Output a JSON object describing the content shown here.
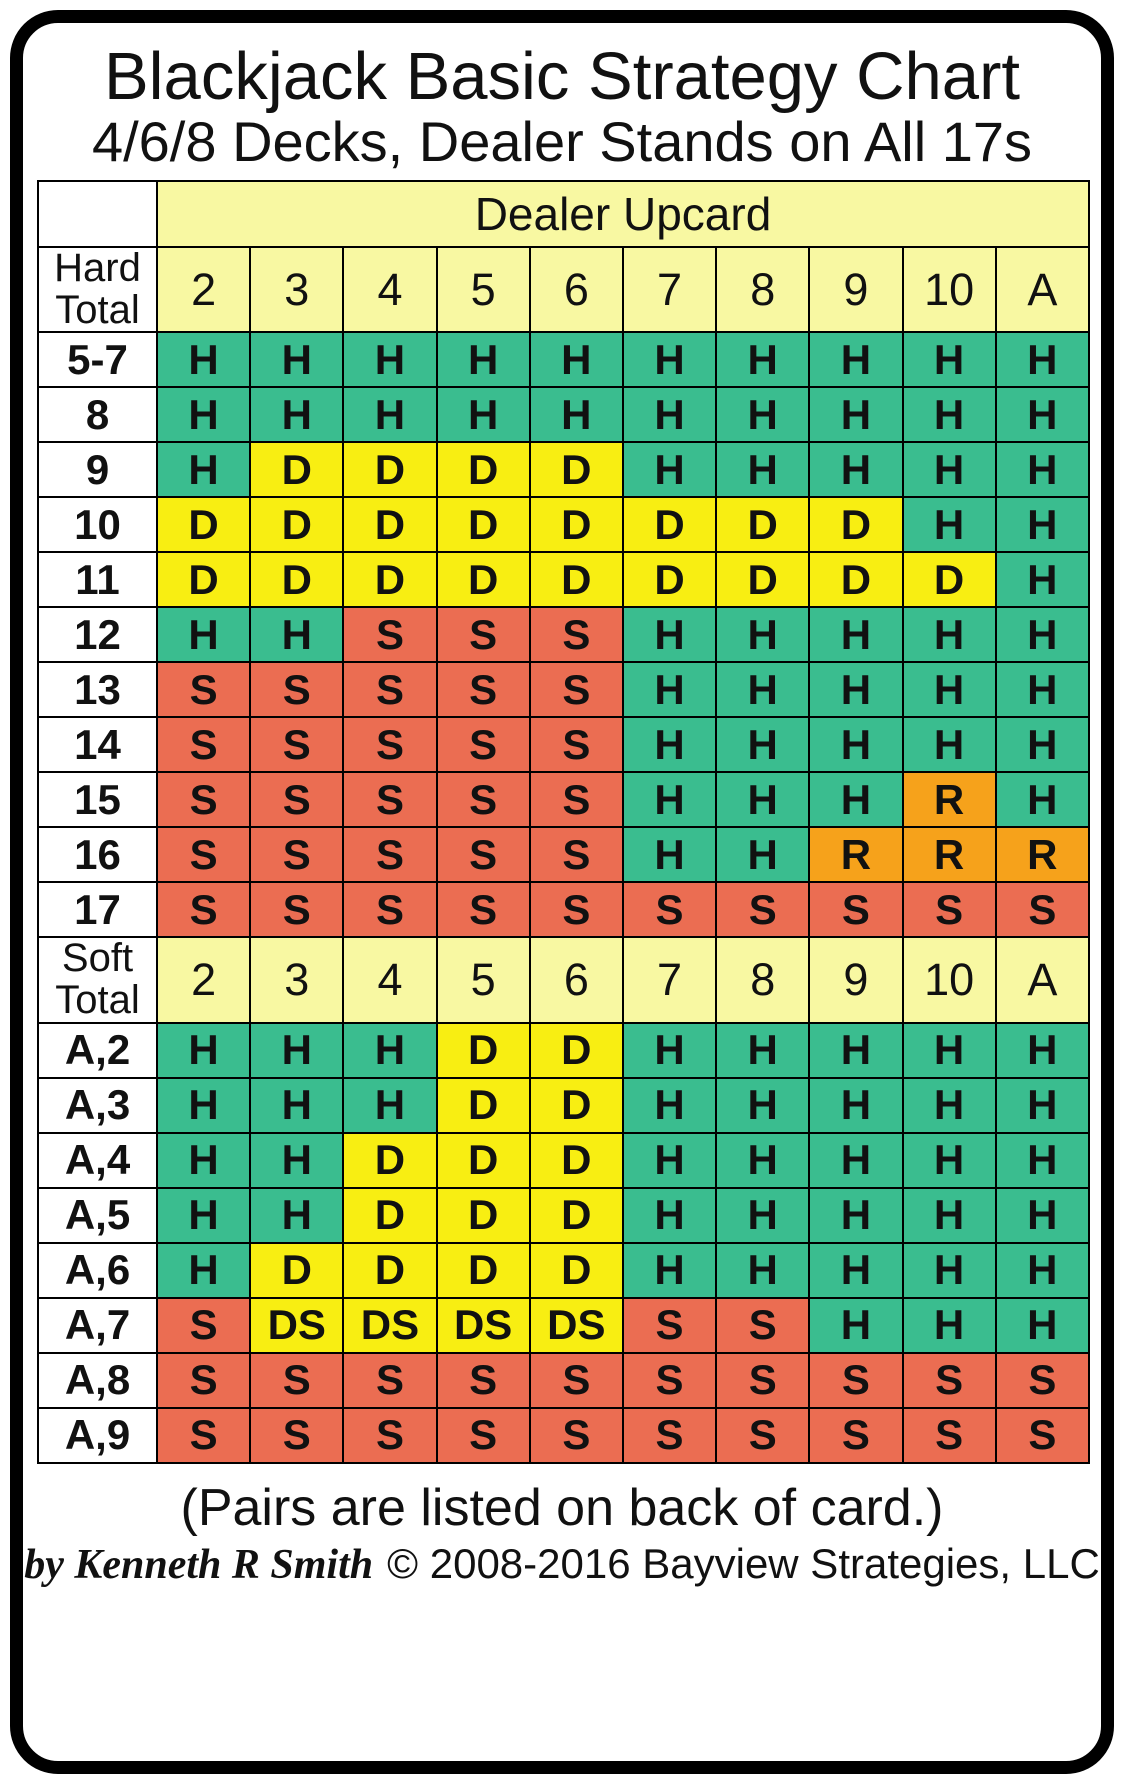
{
  "title": "Blackjack Basic Strategy Chart",
  "subtitle": "4/6/8 Decks, Dealer Stands on All 17s",
  "footer": {
    "pairs_note": "(Pairs are listed on back of card.)",
    "author": "by Kenneth R Smith",
    "copyright": "© 2008-2016 Bayview Strategies, LLC"
  },
  "colors": {
    "hit": "#3ABD8F",
    "double": "#F8EE12",
    "stand": "#EB6D52",
    "surrender": "#F6A21B",
    "header_bg": "#F8F8A2",
    "border": "#000000"
  },
  "chart_data": {
    "type": "table",
    "title": "Blackjack Basic Strategy Chart",
    "subtitle": "4/6/8 Decks, Dealer Stands on All 17s",
    "dealer_upcard_label": "Dealer Upcard",
    "columns": [
      "2",
      "3",
      "4",
      "5",
      "6",
      "7",
      "8",
      "9",
      "10",
      "A"
    ],
    "action_color_keys": {
      "H": "hit",
      "D": "double",
      "S": "stand",
      "R": "surrender",
      "DS": "double"
    },
    "sections": [
      {
        "label": "Hard Total",
        "rows": [
          {
            "label": "5-7",
            "actions": [
              "H",
              "H",
              "H",
              "H",
              "H",
              "H",
              "H",
              "H",
              "H",
              "H"
            ]
          },
          {
            "label": "8",
            "actions": [
              "H",
              "H",
              "H",
              "H",
              "H",
              "H",
              "H",
              "H",
              "H",
              "H"
            ]
          },
          {
            "label": "9",
            "actions": [
              "H",
              "D",
              "D",
              "D",
              "D",
              "H",
              "H",
              "H",
              "H",
              "H"
            ]
          },
          {
            "label": "10",
            "actions": [
              "D",
              "D",
              "D",
              "D",
              "D",
              "D",
              "D",
              "D",
              "H",
              "H"
            ]
          },
          {
            "label": "11",
            "actions": [
              "D",
              "D",
              "D",
              "D",
              "D",
              "D",
              "D",
              "D",
              "D",
              "H"
            ]
          },
          {
            "label": "12",
            "actions": [
              "H",
              "H",
              "S",
              "S",
              "S",
              "H",
              "H",
              "H",
              "H",
              "H"
            ]
          },
          {
            "label": "13",
            "actions": [
              "S",
              "S",
              "S",
              "S",
              "S",
              "H",
              "H",
              "H",
              "H",
              "H"
            ]
          },
          {
            "label": "14",
            "actions": [
              "S",
              "S",
              "S",
              "S",
              "S",
              "H",
              "H",
              "H",
              "H",
              "H"
            ]
          },
          {
            "label": "15",
            "actions": [
              "S",
              "S",
              "S",
              "S",
              "S",
              "H",
              "H",
              "H",
              "R",
              "H"
            ]
          },
          {
            "label": "16",
            "actions": [
              "S",
              "S",
              "S",
              "S",
              "S",
              "H",
              "H",
              "R",
              "R",
              "R"
            ]
          },
          {
            "label": "17",
            "actions": [
              "S",
              "S",
              "S",
              "S",
              "S",
              "S",
              "S",
              "S",
              "S",
              "S"
            ]
          }
        ]
      },
      {
        "label": "Soft Total",
        "rows": [
          {
            "label": "A,2",
            "actions": [
              "H",
              "H",
              "H",
              "D",
              "D",
              "H",
              "H",
              "H",
              "H",
              "H"
            ]
          },
          {
            "label": "A,3",
            "actions": [
              "H",
              "H",
              "H",
              "D",
              "D",
              "H",
              "H",
              "H",
              "H",
              "H"
            ]
          },
          {
            "label": "A,4",
            "actions": [
              "H",
              "H",
              "D",
              "D",
              "D",
              "H",
              "H",
              "H",
              "H",
              "H"
            ]
          },
          {
            "label": "A,5",
            "actions": [
              "H",
              "H",
              "D",
              "D",
              "D",
              "H",
              "H",
              "H",
              "H",
              "H"
            ]
          },
          {
            "label": "A,6",
            "actions": [
              "H",
              "D",
              "D",
              "D",
              "D",
              "H",
              "H",
              "H",
              "H",
              "H"
            ]
          },
          {
            "label": "A,7",
            "actions": [
              "S",
              "DS",
              "DS",
              "DS",
              "DS",
              "S",
              "S",
              "H",
              "H",
              "H"
            ]
          },
          {
            "label": "A,8",
            "actions": [
              "S",
              "S",
              "S",
              "S",
              "S",
              "S",
              "S",
              "S",
              "S",
              "S"
            ]
          },
          {
            "label": "A,9",
            "actions": [
              "S",
              "S",
              "S",
              "S",
              "S",
              "S",
              "S",
              "S",
              "S",
              "S"
            ]
          }
        ]
      }
    ]
  }
}
